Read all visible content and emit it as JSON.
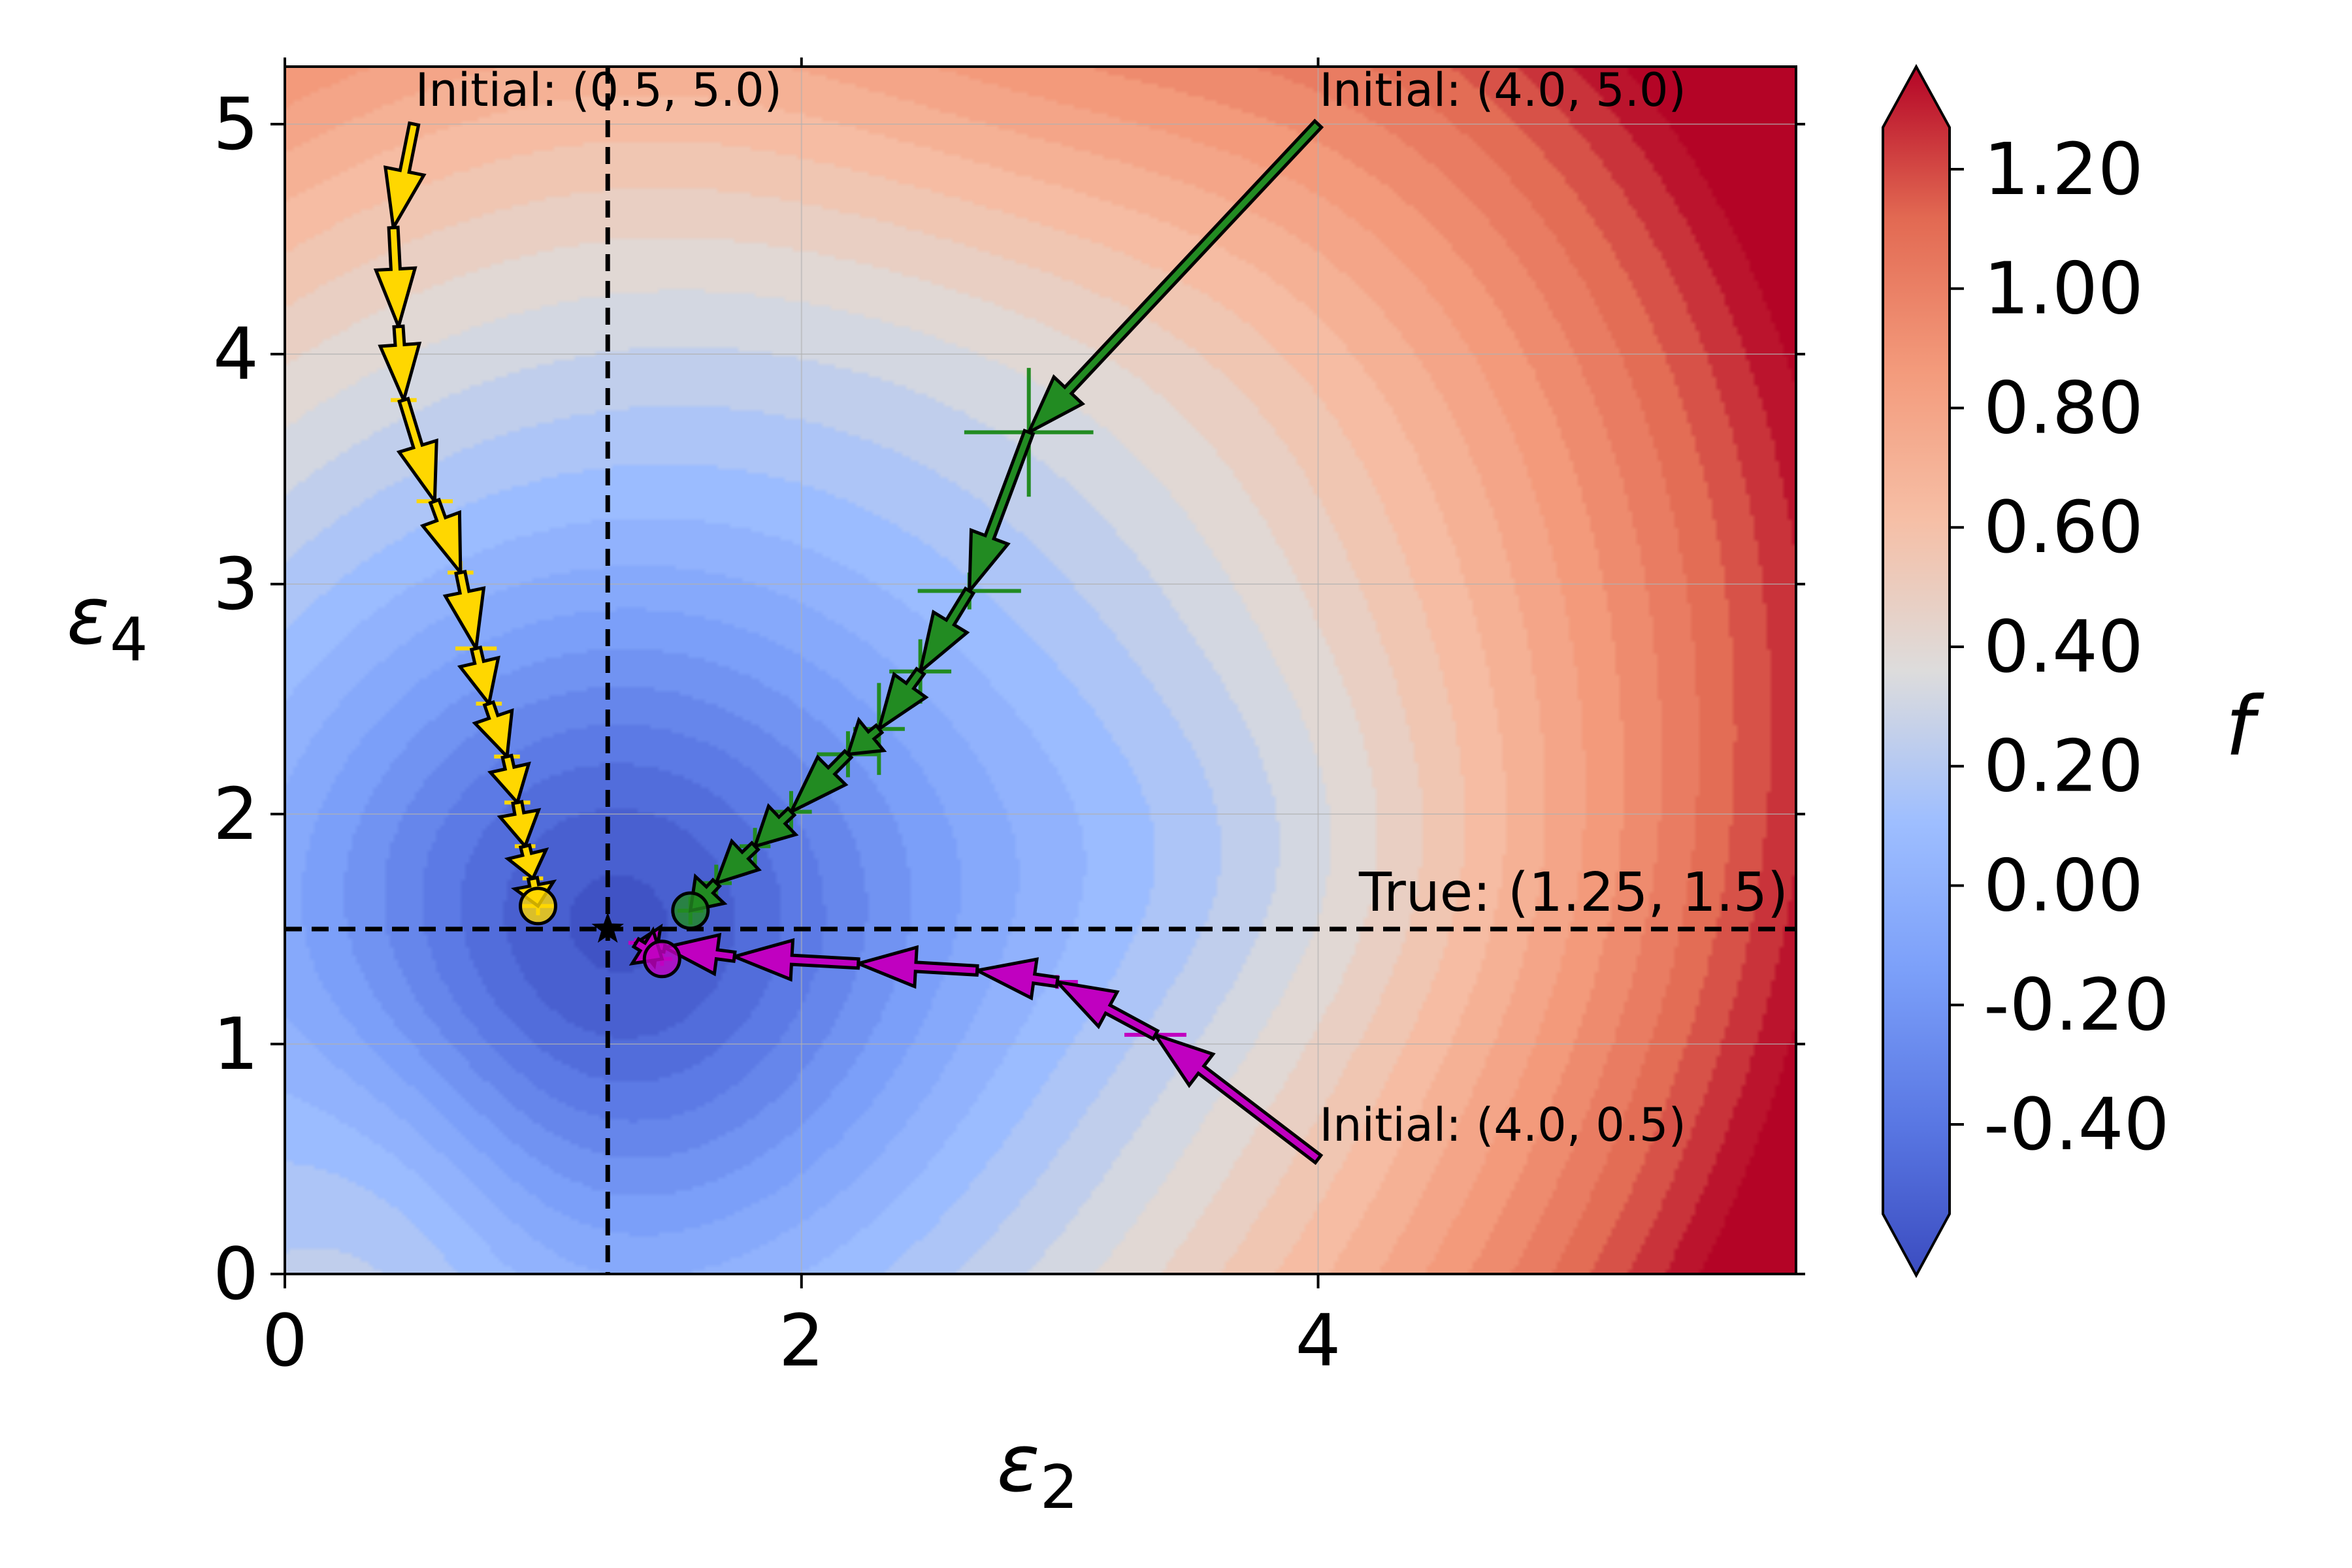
{
  "chart_data": {
    "type": "contour",
    "xlabel": "ε",
    "xlabel_sub": "2",
    "ylabel": "ε",
    "ylabel_sub": "4",
    "xlim": [
      0,
      5.85
    ],
    "ylim": [
      0,
      5.25
    ],
    "x_ticks": [
      "0",
      "2",
      "4"
    ],
    "x_tick_values": [
      0,
      2,
      4
    ],
    "y_ticks": [
      "0",
      "1",
      "2",
      "3",
      "4",
      "5"
    ],
    "y_tick_values": [
      0,
      1,
      2,
      3,
      4,
      5
    ],
    "grid": true,
    "colorbar": {
      "label": "f",
      "colormap": "coolwarm",
      "range": [
        -0.55,
        1.27
      ],
      "extend": "both",
      "ticks": [
        "-0.40",
        "-0.20",
        "0.00",
        "0.20",
        "0.40",
        "0.60",
        "0.80",
        "1.00",
        "1.20"
      ],
      "tick_values": [
        -0.4,
        -0.2,
        0.0,
        0.2,
        0.4,
        0.6,
        0.8,
        1.0,
        1.2
      ]
    },
    "true_point": {
      "label": "True: (1.25, 1.5)",
      "x": 1.25,
      "y": 1.5
    },
    "trajectories": [
      {
        "label": "Initial: (0.5, 5.0)",
        "color": "#ffd700",
        "points": [
          [
            0.5,
            5.0
          ],
          [
            0.42,
            4.55
          ],
          [
            0.44,
            4.12
          ],
          [
            0.46,
            3.8
          ],
          [
            0.58,
            3.36
          ],
          [
            0.68,
            3.05
          ],
          [
            0.74,
            2.72
          ],
          [
            0.79,
            2.48
          ],
          [
            0.86,
            2.25
          ],
          [
            0.9,
            2.05
          ],
          [
            0.93,
            1.86
          ],
          [
            0.96,
            1.72
          ],
          [
            0.98,
            1.6
          ]
        ],
        "x_err": [
          0.0,
          0.0,
          0.0,
          0.05,
          0.07,
          0.05,
          0.08,
          0.05,
          0.05,
          0.05,
          0.04,
          0.04,
          0.06
        ],
        "y_err": [
          0.0,
          0.0,
          0.0,
          0.04,
          0.06,
          0.05,
          0.03,
          0.03,
          0.04,
          0.03,
          0.03,
          0.03,
          0.04
        ]
      },
      {
        "label": "Initial: (4.0, 5.0)",
        "color": "#228b22",
        "points": [
          [
            4.0,
            5.0
          ],
          [
            2.88,
            3.66
          ],
          [
            2.65,
            2.97
          ],
          [
            2.46,
            2.62
          ],
          [
            2.3,
            2.37
          ],
          [
            2.18,
            2.26
          ],
          [
            1.96,
            2.01
          ],
          [
            1.82,
            1.86
          ],
          [
            1.67,
            1.7
          ],
          [
            1.57,
            1.58
          ]
        ],
        "x_err": [
          0.0,
          0.25,
          0.2,
          0.12,
          0.1,
          0.12,
          0.08,
          0.06,
          0.06,
          0.05
        ],
        "y_err": [
          0.0,
          0.28,
          0.08,
          0.14,
          0.2,
          0.1,
          0.09,
          0.08,
          0.08,
          0.06
        ]
      },
      {
        "label": "Initial: (4.0, 0.5)",
        "color": "#c000c0",
        "points": [
          [
            4.0,
            0.5
          ],
          [
            3.37,
            1.04
          ],
          [
            2.99,
            1.27
          ],
          [
            2.68,
            1.32
          ],
          [
            2.22,
            1.35
          ],
          [
            1.74,
            1.38
          ],
          [
            1.47,
            1.42
          ],
          [
            1.36,
            1.44
          ],
          [
            1.46,
            1.37
          ]
        ],
        "x_err": [
          0.0,
          0.12,
          0.08,
          0.05,
          0.04,
          0.04,
          0.03,
          0.03,
          0.04
        ],
        "y_err": [
          0.0,
          0.02,
          0.03,
          0.02,
          0.02,
          0.02,
          0.02,
          0.02,
          0.03
        ]
      }
    ]
  }
}
